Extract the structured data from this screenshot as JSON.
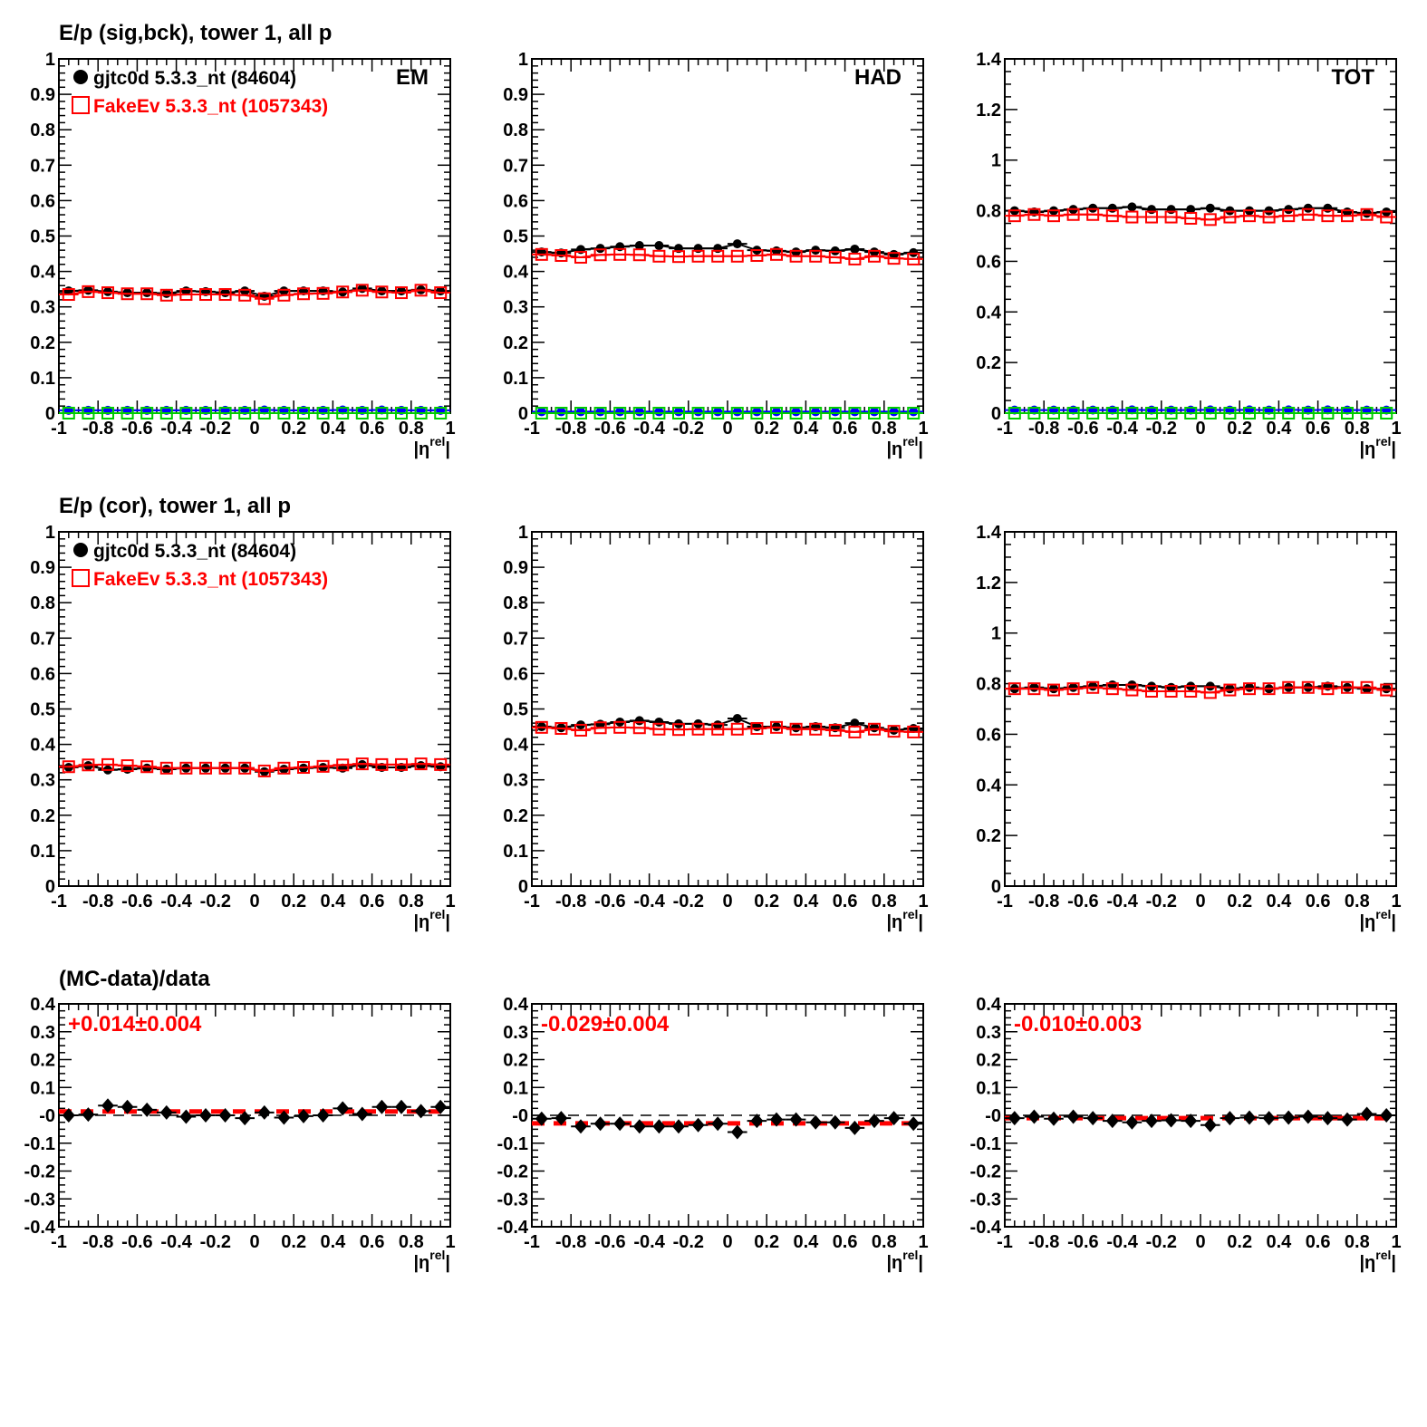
{
  "row_titles": [
    "E/p (sig,bck), tower 1, all p",
    "E/p (cor), tower 1, all p",
    "(MC-data)/data"
  ],
  "legend": [
    {
      "label": "gjtc0d 5.3.3_nt (84604)",
      "color": "#000000",
      "marker": "filled-circle"
    },
    {
      "label": "FakeEv 5.3.3_nt (1057343)",
      "color": "#ff0000",
      "marker": "open-square"
    }
  ],
  "colors": {
    "data": "#000000",
    "mc": "#ff0000",
    "bck_data": "#0000ff",
    "bck_mc": "#00cc00"
  },
  "x_axis": {
    "label_base": "|η",
    "label_sup": "rel",
    "label_end": "|",
    "range": [
      -1,
      1
    ],
    "ticks": [
      "-1",
      "-0.8",
      "-0.6",
      "-0.4",
      "-0.2",
      "0",
      "0.2",
      "0.4",
      "0.6",
      "0.8",
      "1"
    ]
  },
  "chart_data": [
    {
      "type": "scatter",
      "row": 0,
      "col": 0,
      "label": "EM",
      "ylim": [
        0,
        1
      ],
      "yticks": [
        "0",
        "0.1",
        "0.2",
        "0.3",
        "0.4",
        "0.5",
        "0.6",
        "0.7",
        "0.8",
        "0.9",
        "1"
      ],
      "series": [
        {
          "name": "gjtc0d 5.3.3_nt (84604)",
          "values": [
            0.345,
            0.347,
            0.343,
            0.34,
            0.34,
            0.338,
            0.345,
            0.343,
            0.34,
            0.345,
            0.33,
            0.345,
            0.345,
            0.345,
            0.342,
            0.352,
            0.345,
            0.345,
            0.348,
            0.345
          ]
        },
        {
          "name": "FakeEv 5.3.3_nt (1057343)",
          "values": [
            0.335,
            0.343,
            0.34,
            0.337,
            0.337,
            0.333,
            0.335,
            0.335,
            0.335,
            0.333,
            0.323,
            0.333,
            0.337,
            0.338,
            0.342,
            0.347,
            0.342,
            0.34,
            0.347,
            0.34
          ]
        },
        {
          "name": "bck data",
          "values": [
            0.008,
            0.008,
            0.008,
            0.008,
            0.008,
            0.008,
            0.008,
            0.008,
            0.008,
            0.008,
            0.009,
            0.008,
            0.008,
            0.008,
            0.009,
            0.008,
            0.009,
            0.008,
            0.008,
            0.008
          ]
        },
        {
          "name": "bck mc",
          "values": [
            0,
            0,
            0,
            0,
            0,
            0,
            0,
            0,
            0,
            0,
            0,
            0,
            0,
            0,
            0,
            0,
            0,
            0,
            0,
            0
          ]
        }
      ]
    },
    {
      "type": "scatter",
      "row": 0,
      "col": 1,
      "label": "HAD",
      "ylim": [
        0,
        1
      ],
      "yticks": [
        "0",
        "0.1",
        "0.2",
        "0.3",
        "0.4",
        "0.5",
        "0.6",
        "0.7",
        "0.8",
        "0.9",
        "1"
      ],
      "series": [
        {
          "name": "gjtc0d 5.3.3_nt (84604)",
          "values": [
            0.455,
            0.452,
            0.462,
            0.465,
            0.47,
            0.473,
            0.473,
            0.465,
            0.465,
            0.465,
            0.478,
            0.46,
            0.458,
            0.455,
            0.46,
            0.458,
            0.463,
            0.455,
            0.448,
            0.453
          ]
        },
        {
          "name": "FakeEv 5.3.3_nt (1057343)",
          "values": [
            0.448,
            0.445,
            0.44,
            0.447,
            0.448,
            0.447,
            0.443,
            0.442,
            0.443,
            0.443,
            0.443,
            0.445,
            0.448,
            0.443,
            0.443,
            0.44,
            0.435,
            0.443,
            0.437,
            0.435
          ]
        },
        {
          "name": "bck data",
          "values": [
            0.004,
            0.004,
            0.004,
            0.004,
            0.004,
            0.004,
            0.004,
            0.004,
            0.004,
            0.004,
            0.004,
            0.004,
            0.004,
            0.004,
            0.004,
            0.004,
            0.004,
            0.004,
            0.004,
            0.004
          ]
        },
        {
          "name": "bck mc",
          "values": [
            0,
            0,
            0,
            0,
            0,
            0,
            0,
            0,
            0,
            0,
            0,
            0,
            0,
            0,
            0,
            0,
            0,
            0,
            0,
            0
          ]
        }
      ]
    },
    {
      "type": "scatter",
      "row": 0,
      "col": 2,
      "label": "TOT",
      "ylim": [
        0,
        1.4
      ],
      "yticks": [
        "0",
        "0.2",
        "0.4",
        "0.6",
        "0.8",
        "1",
        "1.2",
        "1.4"
      ],
      "series": [
        {
          "name": "gjtc0d 5.3.3_nt (84604)",
          "values": [
            0.8,
            0.795,
            0.8,
            0.805,
            0.81,
            0.81,
            0.815,
            0.805,
            0.805,
            0.805,
            0.81,
            0.8,
            0.8,
            0.8,
            0.805,
            0.81,
            0.81,
            0.795,
            0.79,
            0.795
          ]
        },
        {
          "name": "FakeEv 5.3.3_nt (1057343)",
          "values": [
            0.78,
            0.785,
            0.78,
            0.785,
            0.785,
            0.78,
            0.775,
            0.775,
            0.775,
            0.77,
            0.765,
            0.775,
            0.78,
            0.775,
            0.78,
            0.785,
            0.78,
            0.78,
            0.785,
            0.775
          ]
        },
        {
          "name": "bck data",
          "values": [
            0.012,
            0.012,
            0.012,
            0.012,
            0.012,
            0.012,
            0.013,
            0.012,
            0.012,
            0.012,
            0.013,
            0.012,
            0.013,
            0.012,
            0.013,
            0.012,
            0.013,
            0.012,
            0.012,
            0.012
          ]
        },
        {
          "name": "bck mc",
          "values": [
            0,
            0,
            0,
            0,
            0,
            0,
            0,
            0,
            0,
            0,
            0,
            0,
            0,
            0,
            0,
            0,
            0,
            0,
            0,
            0
          ]
        }
      ]
    },
    {
      "type": "scatter",
      "row": 1,
      "col": 0,
      "label": "",
      "ylim": [
        0,
        1
      ],
      "yticks": [
        "0",
        "0.1",
        "0.2",
        "0.3",
        "0.4",
        "0.5",
        "0.6",
        "0.7",
        "0.8",
        "0.9",
        "1"
      ],
      "series": [
        {
          "name": "gjtc0d 5.3.3_nt (84604)",
          "values": [
            0.335,
            0.34,
            0.328,
            0.33,
            0.333,
            0.33,
            0.333,
            0.333,
            0.333,
            0.333,
            0.323,
            0.33,
            0.333,
            0.335,
            0.333,
            0.343,
            0.335,
            0.335,
            0.34,
            0.337
          ]
        },
        {
          "name": "FakeEv 5.3.3_nt (1057343)",
          "values": [
            0.337,
            0.342,
            0.343,
            0.34,
            0.337,
            0.333,
            0.333,
            0.333,
            0.333,
            0.333,
            0.325,
            0.333,
            0.335,
            0.338,
            0.342,
            0.345,
            0.343,
            0.343,
            0.345,
            0.343
          ]
        }
      ]
    },
    {
      "type": "scatter",
      "row": 1,
      "col": 1,
      "label": "",
      "ylim": [
        0,
        1
      ],
      "yticks": [
        "0",
        "0.1",
        "0.2",
        "0.3",
        "0.4",
        "0.5",
        "0.6",
        "0.7",
        "0.8",
        "0.9",
        "1"
      ],
      "series": [
        {
          "name": "gjtc0d 5.3.3_nt (84604)",
          "values": [
            0.45,
            0.447,
            0.455,
            0.457,
            0.463,
            0.467,
            0.463,
            0.458,
            0.458,
            0.455,
            0.473,
            0.45,
            0.45,
            0.447,
            0.45,
            0.447,
            0.46,
            0.447,
            0.44,
            0.445
          ]
        },
        {
          "name": "FakeEv 5.3.3_nt (1057343)",
          "values": [
            0.448,
            0.445,
            0.44,
            0.447,
            0.448,
            0.447,
            0.443,
            0.442,
            0.443,
            0.443,
            0.443,
            0.445,
            0.448,
            0.443,
            0.443,
            0.44,
            0.435,
            0.443,
            0.437,
            0.435
          ]
        }
      ]
    },
    {
      "type": "scatter",
      "row": 1,
      "col": 2,
      "label": "",
      "ylim": [
        0,
        1.4
      ],
      "yticks": [
        "0",
        "0.2",
        "0.4",
        "0.6",
        "0.8",
        "1",
        "1.2",
        "1.4"
      ],
      "series": [
        {
          "name": "gjtc0d 5.3.3_nt (84604)",
          "values": [
            0.78,
            0.785,
            0.78,
            0.785,
            0.79,
            0.795,
            0.795,
            0.79,
            0.785,
            0.79,
            0.79,
            0.78,
            0.785,
            0.78,
            0.785,
            0.785,
            0.79,
            0.785,
            0.78,
            0.78
          ]
        },
        {
          "name": "FakeEv 5.3.3_nt (1057343)",
          "values": [
            0.78,
            0.78,
            0.775,
            0.78,
            0.785,
            0.78,
            0.775,
            0.77,
            0.77,
            0.77,
            0.765,
            0.775,
            0.78,
            0.78,
            0.785,
            0.785,
            0.78,
            0.785,
            0.785,
            0.775
          ]
        }
      ]
    },
    {
      "type": "scatter",
      "row": 2,
      "col": 0,
      "label": "",
      "fit_text": "+0.014±0.004",
      "fit_value": 0.014,
      "ylim": [
        -0.4,
        0.4
      ],
      "yticks": [
        "-0.4",
        "-0.3",
        "-0.2",
        "-0.1",
        "-0",
        "0.1",
        "0.2",
        "0.3",
        "0.4"
      ],
      "series": [
        {
          "name": "ratio",
          "values": [
            0.0,
            0.003,
            0.035,
            0.03,
            0.02,
            0.01,
            -0.005,
            0.0,
            0.0,
            -0.01,
            0.01,
            -0.008,
            -0.003,
            0.0,
            0.025,
            0.005,
            0.03,
            0.03,
            0.015,
            0.03
          ]
        }
      ]
    },
    {
      "type": "scatter",
      "row": 2,
      "col": 1,
      "label": "",
      "fit_text": "-0.029±0.004",
      "fit_value": -0.029,
      "ylim": [
        -0.4,
        0.4
      ],
      "yticks": [
        "-0.4",
        "-0.3",
        "-0.2",
        "-0.1",
        "-0",
        "0.1",
        "0.2",
        "0.3",
        "0.4"
      ],
      "series": [
        {
          "name": "ratio",
          "values": [
            -0.012,
            -0.01,
            -0.04,
            -0.03,
            -0.03,
            -0.04,
            -0.04,
            -0.04,
            -0.035,
            -0.03,
            -0.06,
            -0.02,
            -0.015,
            -0.015,
            -0.025,
            -0.025,
            -0.045,
            -0.02,
            -0.01,
            -0.03
          ]
        }
      ]
    },
    {
      "type": "scatter",
      "row": 2,
      "col": 2,
      "label": "",
      "fit_text": "-0.010±0.003",
      "fit_value": -0.01,
      "ylim": [
        -0.4,
        0.4
      ],
      "yticks": [
        "-0.4",
        "-0.3",
        "-0.2",
        "-0.1",
        "-0",
        "0.1",
        "0.2",
        "0.3",
        "0.4"
      ],
      "series": [
        {
          "name": "ratio",
          "values": [
            -0.01,
            -0.005,
            -0.012,
            -0.005,
            -0.01,
            -0.02,
            -0.025,
            -0.02,
            -0.018,
            -0.02,
            -0.035,
            -0.01,
            -0.008,
            -0.01,
            -0.008,
            -0.005,
            -0.01,
            -0.015,
            0.005,
            0.0
          ]
        }
      ]
    }
  ]
}
